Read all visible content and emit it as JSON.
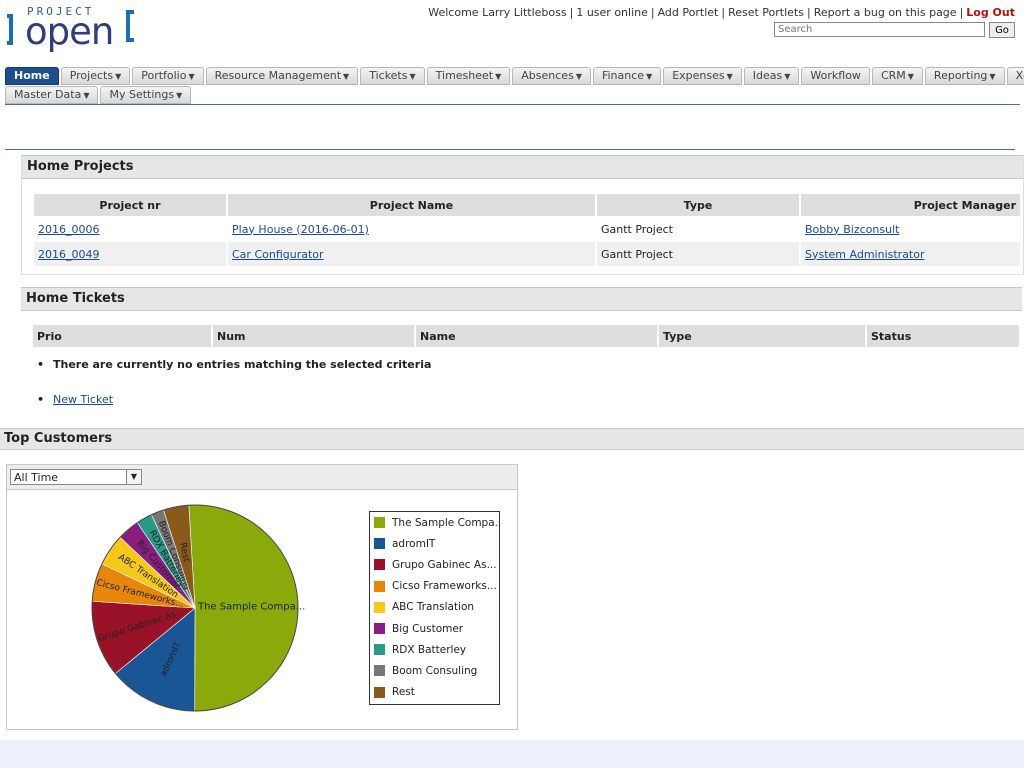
{
  "logo": {
    "small": "PROJECT",
    "big": "open"
  },
  "top_links": {
    "welcome": "Welcome Larry Littleboss",
    "users_online": "1 user online",
    "add_portlet": "Add Portlet",
    "reset_portlets": "Reset Portlets",
    "report_bug": "Report a bug on this page",
    "logout": "Log Out"
  },
  "search": {
    "placeholder": "Search",
    "go": "Go"
  },
  "nav": {
    "row1": [
      "Home",
      "Projects",
      "Portfolio",
      "Resource Management",
      "Tickets",
      "Timesheet",
      "Absences",
      "Finance",
      "Expenses",
      "Ideas",
      "Workflow",
      "CRM",
      "Reporting",
      "XoWiki"
    ],
    "row1_dropdown": [
      false,
      true,
      true,
      true,
      true,
      true,
      true,
      true,
      true,
      true,
      false,
      true,
      true,
      false
    ],
    "row2": [
      "Master Data",
      "My Settings"
    ],
    "active": "Home"
  },
  "home_projects": {
    "title": "Home Projects",
    "columns": [
      "Project nr",
      "Project Name",
      "Type",
      "Project Manager"
    ],
    "rows": [
      {
        "nr": "2016_0006",
        "name": "Play House (2016-06-01)",
        "type": "Gantt Project",
        "manager": "Bobby Bizconsult"
      },
      {
        "nr": "2016_0049",
        "name": "Car Configurator",
        "type": "Gantt Project",
        "manager": "System Administrator"
      }
    ]
  },
  "home_tickets": {
    "title": "Home Tickets",
    "columns": [
      "Prio",
      "Num",
      "Name",
      "Type",
      "Status"
    ],
    "empty_message": "There are currently no entries matching the selected criteria",
    "new_ticket": "New Ticket"
  },
  "top_customers": {
    "title": "Top Customers",
    "period": "All Time"
  },
  "chart_data": {
    "type": "pie",
    "labels": [
      "The Sample Compa...",
      "adromIT",
      "Grupo Gabinec As...",
      "Cicso Frameworks...",
      "ABC Translation",
      "Big Customer",
      "RDX Batterley",
      "Boom Consuling",
      "Rest"
    ],
    "slice_labels": [
      "The Sample Compa...",
      "adromIT",
      "Grupo Gabinec As...",
      "Cicso Frameworks...",
      "ABC Translation",
      "Big Customer",
      "RDX Batterley",
      "Boom Consuling",
      "Rest"
    ],
    "values": [
      51,
      14,
      12,
      6,
      5,
      3.5,
      2.5,
      2,
      4
    ],
    "colors": [
      "#8aaa0c",
      "#1a5596",
      "#9a1228",
      "#e8860c",
      "#f5c81a",
      "#8a1e7e",
      "#2a9a86",
      "#777777",
      "#8a5a1a"
    ],
    "legend": "right"
  }
}
